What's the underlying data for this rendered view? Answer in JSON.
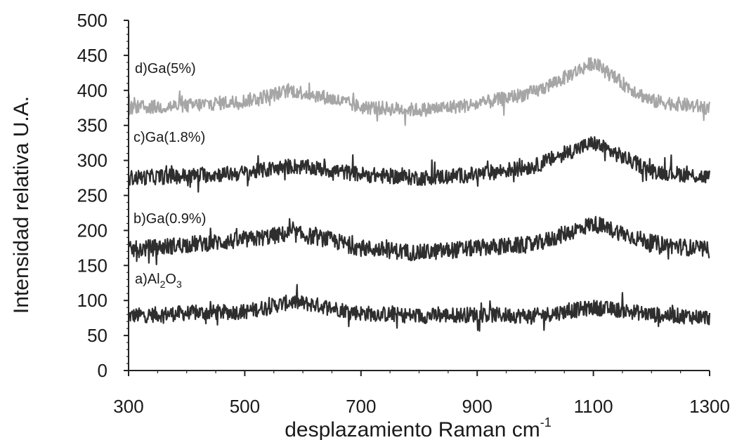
{
  "chart_data": {
    "type": "line",
    "xlabel": "desplazamiento Raman  cm",
    "xlabel_sup": "-1",
    "ylabel": "Intensidad relativa U.A.",
    "xlim": [
      300,
      1300
    ],
    "ylim": [
      0,
      500
    ],
    "x_ticks": [
      "300",
      "500",
      "700",
      "900",
      "1100",
      "1300"
    ],
    "y_ticks": [
      "0",
      "50",
      "100",
      "150",
      "200",
      "250",
      "300",
      "350",
      "400",
      "450",
      "500"
    ],
    "grid": false,
    "series": [
      {
        "label_main": "a)Al",
        "label_sub1": "2",
        "label_mid": "O",
        "label_sub2": "3",
        "color": "#2e2e2e",
        "noise": 11,
        "points": [
          [
            300,
            78
          ],
          [
            400,
            82
          ],
          [
            500,
            84
          ],
          [
            580,
            98
          ],
          [
            620,
            94
          ],
          [
            700,
            82
          ],
          [
            800,
            78
          ],
          [
            900,
            80
          ],
          [
            1000,
            78
          ],
          [
            1050,
            84
          ],
          [
            1100,
            90
          ],
          [
            1150,
            86
          ],
          [
            1200,
            80
          ],
          [
            1300,
            76
          ]
        ]
      },
      {
        "label": "b)Ga(0.9%)",
        "color": "#2e2e2e",
        "noise": 12,
        "points": [
          [
            300,
            172
          ],
          [
            400,
            180
          ],
          [
            500,
            186
          ],
          [
            580,
            196
          ],
          [
            640,
            188
          ],
          [
            700,
            175
          ],
          [
            800,
            168
          ],
          [
            900,
            175
          ],
          [
            1000,
            180
          ],
          [
            1050,
            195
          ],
          [
            1100,
            210
          ],
          [
            1150,
            196
          ],
          [
            1200,
            182
          ],
          [
            1300,
            172
          ]
        ]
      },
      {
        "label": "c)Ga(1.8%)",
        "color": "#2e2e2e",
        "noise": 11,
        "points": [
          [
            300,
            275
          ],
          [
            400,
            278
          ],
          [
            500,
            282
          ],
          [
            580,
            292
          ],
          [
            640,
            287
          ],
          [
            700,
            280
          ],
          [
            800,
            275
          ],
          [
            900,
            280
          ],
          [
            1000,
            292
          ],
          [
            1050,
            310
          ],
          [
            1100,
            325
          ],
          [
            1150,
            305
          ],
          [
            1200,
            285
          ],
          [
            1300,
            276
          ]
        ]
      },
      {
        "label": "d)Ga(5%)",
        "color": "#a6a6a6",
        "noise": 10,
        "points": [
          [
            300,
            375
          ],
          [
            400,
            378
          ],
          [
            500,
            385
          ],
          [
            580,
            400
          ],
          [
            640,
            390
          ],
          [
            700,
            376
          ],
          [
            800,
            372
          ],
          [
            900,
            380
          ],
          [
            1000,
            398
          ],
          [
            1050,
            418
          ],
          [
            1100,
            440
          ],
          [
            1150,
            410
          ],
          [
            1200,
            385
          ],
          [
            1300,
            375
          ]
        ]
      }
    ]
  }
}
